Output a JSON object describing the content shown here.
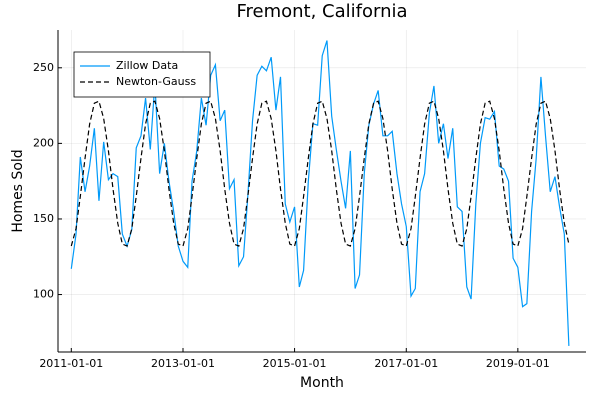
{
  "chart_data": {
    "type": "line",
    "title": "Fremont, California",
    "xlabel": "Month",
    "ylabel": "Homes Sold",
    "x": [
      "2011-01-01",
      "2011-02-01",
      "2011-03-01",
      "2011-04-01",
      "2011-05-01",
      "2011-06-01",
      "2011-07-01",
      "2011-08-01",
      "2011-09-01",
      "2011-10-01",
      "2011-11-01",
      "2011-12-01",
      "2012-01-01",
      "2012-02-01",
      "2012-03-01",
      "2012-04-01",
      "2012-05-01",
      "2012-06-01",
      "2012-07-01",
      "2012-08-01",
      "2012-09-01",
      "2012-10-01",
      "2012-11-01",
      "2012-12-01",
      "2013-01-01",
      "2013-02-01",
      "2013-03-01",
      "2013-04-01",
      "2013-05-01",
      "2013-06-01",
      "2013-07-01",
      "2013-08-01",
      "2013-09-01",
      "2013-10-01",
      "2013-11-01",
      "2013-12-01",
      "2014-01-01",
      "2014-02-01",
      "2014-03-01",
      "2014-04-01",
      "2014-05-01",
      "2014-06-01",
      "2014-07-01",
      "2014-08-01",
      "2014-09-01",
      "2014-10-01",
      "2014-11-01",
      "2014-12-01",
      "2015-01-01",
      "2015-02-01",
      "2015-03-01",
      "2015-04-01",
      "2015-05-01",
      "2015-06-01",
      "2015-07-01",
      "2015-08-01",
      "2015-09-01",
      "2015-10-01",
      "2015-11-01",
      "2015-12-01",
      "2016-01-01",
      "2016-02-01",
      "2016-03-01",
      "2016-04-01",
      "2016-05-01",
      "2016-06-01",
      "2016-07-01",
      "2016-08-01",
      "2016-09-01",
      "2016-10-01",
      "2016-11-01",
      "2016-12-01",
      "2017-01-01",
      "2017-02-01",
      "2017-03-01",
      "2017-04-01",
      "2017-05-01",
      "2017-06-01",
      "2017-07-01",
      "2017-08-01",
      "2017-09-01",
      "2017-10-01",
      "2017-11-01",
      "2017-12-01",
      "2018-01-01",
      "2018-02-01",
      "2018-03-01",
      "2018-04-01",
      "2018-05-01",
      "2018-06-01",
      "2018-07-01",
      "2018-08-01",
      "2018-09-01",
      "2018-10-01",
      "2018-11-01",
      "2018-12-01",
      "2019-01-01",
      "2019-02-01",
      "2019-03-01",
      "2019-04-01",
      "2019-05-01",
      "2019-06-01",
      "2019-07-01",
      "2019-08-01",
      "2019-09-01",
      "2019-10-01",
      "2019-11-01",
      "2019-12-01"
    ],
    "series": [
      {
        "name": "Zillow Data",
        "color": "#009af9",
        "dash": false,
        "values": [
          117,
          140,
          191,
          168,
          185,
          210,
          162,
          201,
          176,
          180,
          178,
          140,
          132,
          143,
          197,
          205,
          230,
          196,
          240,
          180,
          200,
          175,
          155,
          132,
          122,
          118,
          175,
          195,
          230,
          212,
          245,
          252,
          215,
          222,
          170,
          176,
          119,
          125,
          165,
          215,
          245,
          251,
          248,
          257,
          222,
          244,
          160,
          148,
          158,
          105,
          116,
          175,
          213,
          212,
          258,
          268,
          218,
          196,
          175,
          157,
          195,
          104,
          113,
          180,
          212,
          226,
          235,
          205,
          205,
          208,
          180,
          160,
          145,
          99,
          104,
          168,
          180,
          220,
          238,
          200,
          213,
          190,
          210,
          158,
          155,
          105,
          97,
          160,
          200,
          217,
          216,
          221,
          185,
          183,
          175,
          124,
          118,
          92,
          94,
          155,
          190,
          244,
          205,
          168,
          178,
          158,
          140,
          66
        ]
      },
      {
        "name": "Newton-Gauss",
        "color": "#000000",
        "dash": true,
        "values": [
          132.1,
          143.6,
          164.9,
          190.2,
          212.8,
          226.6,
          227.9,
          216.4,
          195.1,
          169.8,
          147.2,
          133.4,
          132.1,
          143.6,
          164.9,
          190.2,
          212.8,
          226.6,
          227.9,
          216.4,
          195.1,
          169.8,
          147.2,
          133.4,
          132.1,
          143.6,
          164.9,
          190.2,
          212.8,
          226.6,
          227.9,
          216.4,
          195.1,
          169.8,
          147.2,
          133.4,
          132.1,
          143.6,
          164.9,
          190.2,
          212.8,
          226.6,
          227.9,
          216.4,
          195.1,
          169.8,
          147.2,
          133.4,
          132.1,
          143.6,
          164.9,
          190.2,
          212.8,
          226.6,
          227.9,
          216.4,
          195.1,
          169.8,
          147.2,
          133.4,
          132.1,
          143.6,
          164.9,
          190.2,
          212.8,
          226.6,
          227.9,
          216.4,
          195.1,
          169.8,
          147.2,
          133.4,
          132.1,
          143.6,
          164.9,
          190.2,
          212.8,
          226.6,
          227.9,
          216.4,
          195.1,
          169.8,
          147.2,
          133.4,
          132.1,
          143.6,
          164.9,
          190.2,
          212.8,
          226.6,
          227.9,
          216.4,
          195.1,
          169.8,
          147.2,
          133.4,
          132.1,
          143.6,
          164.9,
          190.2,
          212.8,
          226.6,
          227.9,
          216.4,
          195.1,
          169.8,
          147.2,
          133.4
        ]
      }
    ],
    "xlim": [
      "2010-10-06",
      "2020-03-22"
    ],
    "xticks": [
      "2011-01-01",
      "2013-01-01",
      "2015-01-01",
      "2017-01-01",
      "2019-01-01"
    ],
    "ylim": [
      62,
      275
    ],
    "yticks": [
      100,
      150,
      200,
      250
    ],
    "grid": true,
    "legend": "top-left"
  }
}
